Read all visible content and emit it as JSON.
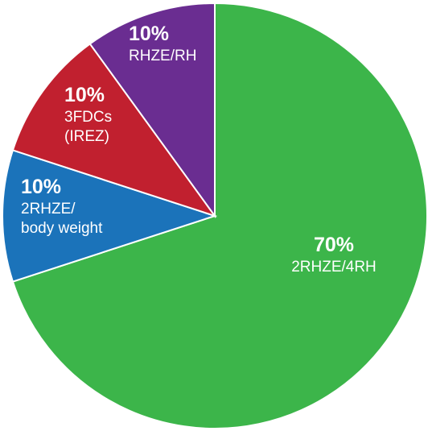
{
  "chart_data": {
    "type": "pie",
    "categories": [
      "2RHZE/4RH",
      "2RHZE/\nbody weight",
      "3FDCs\n(IREZ)",
      "RHZE/RH"
    ],
    "values": [
      70,
      10,
      10,
      10
    ],
    "value_labels": [
      "70%",
      "10%",
      "10%",
      "10%"
    ],
    "colors": [
      "#3cb54a",
      "#1b73ba",
      "#c1202f",
      "#6a2d91"
    ]
  }
}
